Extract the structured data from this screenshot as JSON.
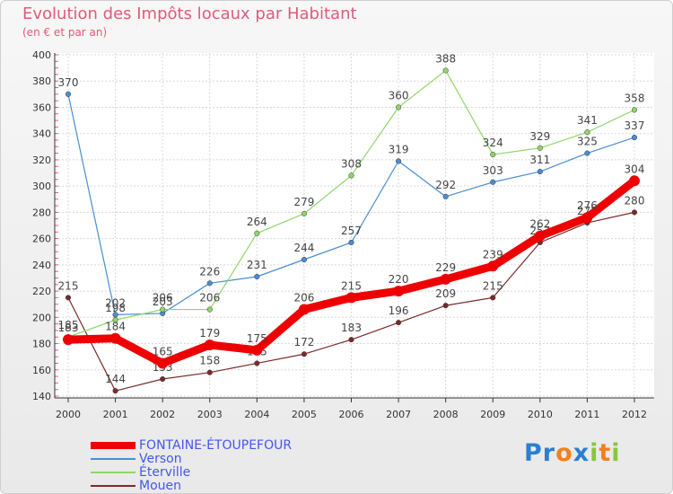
{
  "title": "Evolution des Impôts locaux par Habitant",
  "subtitle": "(en € et par an)",
  "logo": {
    "text": "Proxiti",
    "letters": [
      {
        "ch": "P",
        "color": "#2a7fd0"
      },
      {
        "ch": "r",
        "color": "#2a7fd0"
      },
      {
        "ch": "o",
        "color": "#f08020"
      },
      {
        "ch": "x",
        "color": "#2a7fd0"
      },
      {
        "ch": "i",
        "color": "#8bc53f"
      },
      {
        "ch": "t",
        "color": "#f08020"
      },
      {
        "ch": "i",
        "color": "#8bc53f"
      }
    ]
  },
  "chart_data": {
    "type": "line",
    "x": [
      "2000",
      "2001",
      "2002",
      "2003",
      "2004",
      "2005",
      "2006",
      "2007",
      "2008",
      "2009",
      "2010",
      "2011",
      "2012"
    ],
    "ylim": [
      140,
      400
    ],
    "yticks": [
      140,
      160,
      180,
      200,
      220,
      240,
      260,
      280,
      300,
      320,
      340,
      360,
      380,
      400
    ],
    "grid": true,
    "legend_position": "bottom-left",
    "series": [
      {
        "name": "Mouen",
        "color": "#7a2a2a",
        "values": [
          215,
          144,
          153,
          158,
          165,
          172,
          183,
          196,
          209,
          215,
          257,
          272,
          280
        ]
      },
      {
        "name": "Verson",
        "color": "#4a8ed0",
        "values": [
          370,
          202,
          203,
          226,
          231,
          244,
          257,
          319,
          292,
          303,
          311,
          325,
          337
        ]
      },
      {
        "name": "Éterville",
        "color": "#8fd66a",
        "values": [
          185,
          198,
          206,
          206,
          264,
          279,
          308,
          360,
          388,
          324,
          329,
          341,
          358
        ]
      },
      {
        "name": "FONTAINE-ÉTOUPEFOUR",
        "color": "#ee0000",
        "values": [
          183,
          184,
          165,
          179,
          175,
          206,
          215,
          220,
          229,
          239,
          262,
          276,
          304
        ]
      }
    ],
    "legend_order": [
      "FONTAINE-ÉTOUPEFOUR",
      "Verson",
      "Éterville",
      "Mouen"
    ]
  }
}
